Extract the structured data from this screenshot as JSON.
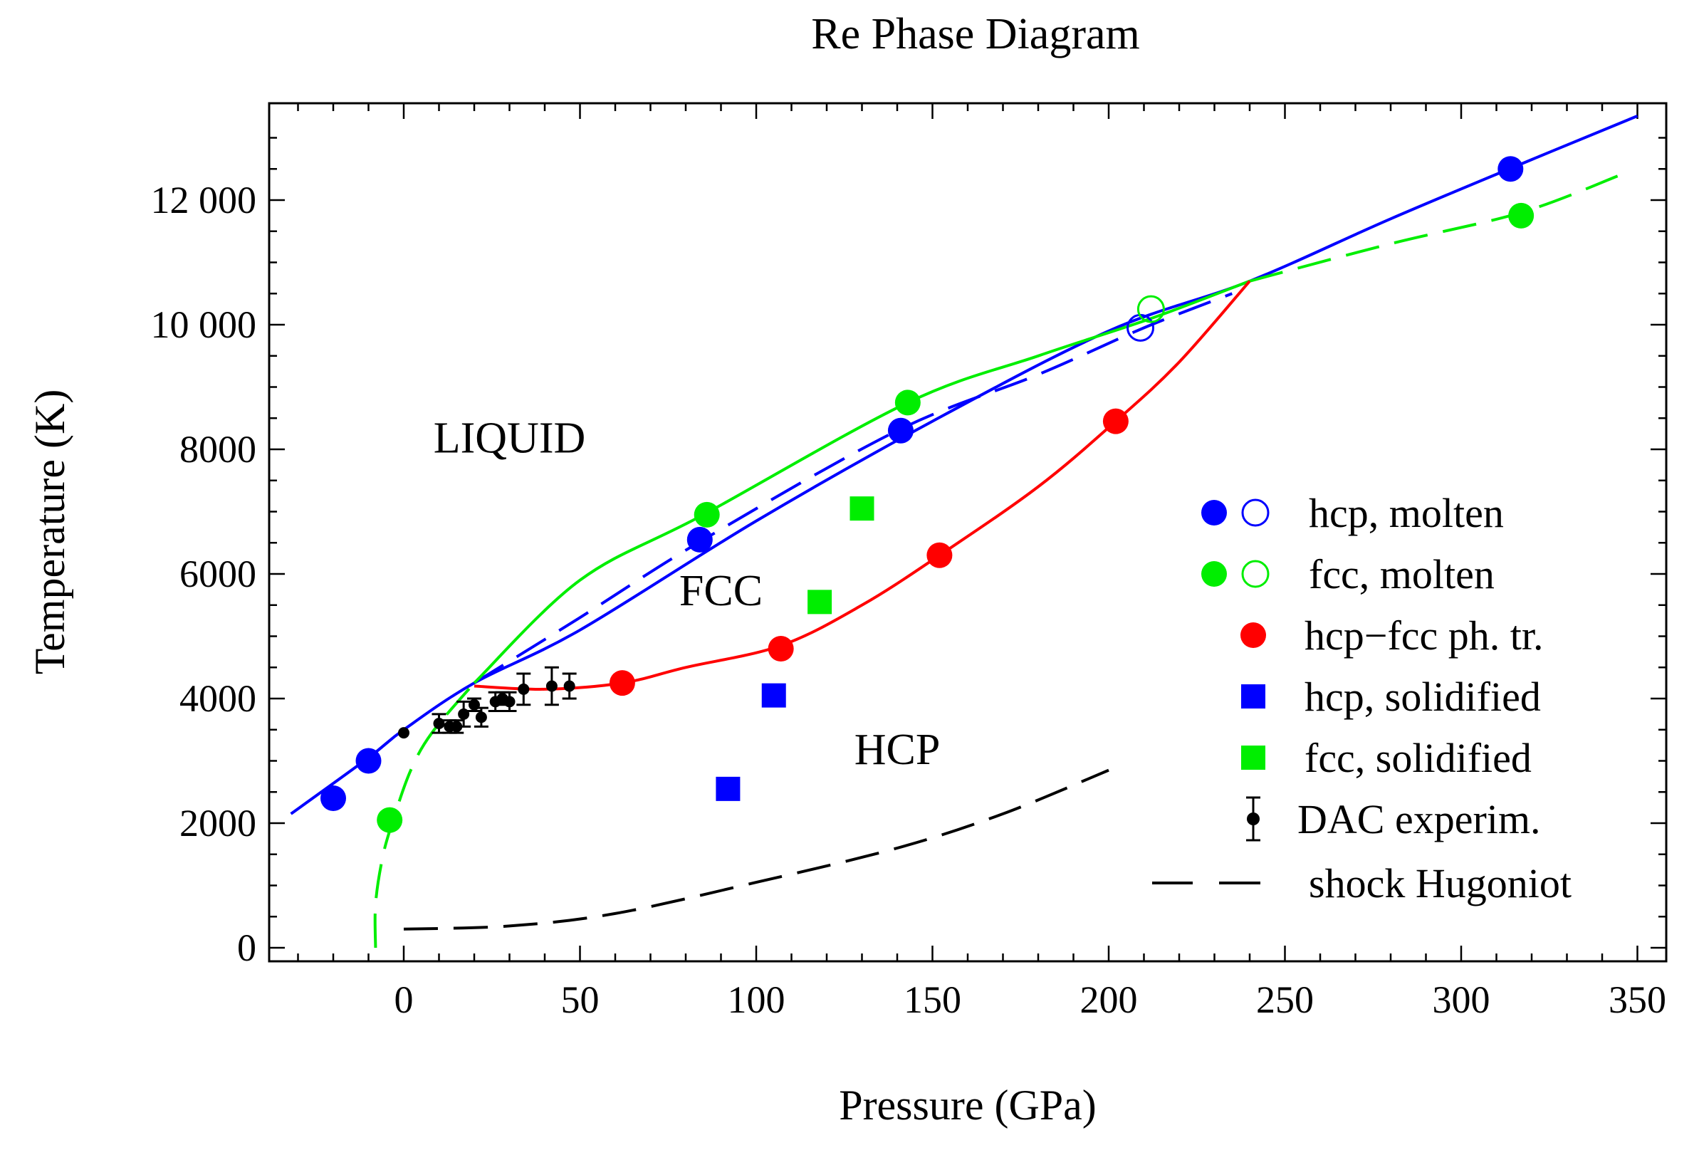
{
  "chart_data": {
    "type": "scatter",
    "title": "Re Phase Diagram",
    "xlabel": "Pressure (GPa)",
    "ylabel": "Temperature (K)",
    "xlim": [
      -40,
      350
    ],
    "ylim": [
      -250,
      13800
    ],
    "x_ticks": [
      0,
      50,
      100,
      150,
      200,
      250,
      300,
      350
    ],
    "x_tick_labels": [
      "0",
      "50",
      "100",
      "150",
      "200",
      "250",
      "300",
      "350"
    ],
    "y_ticks": [
      0,
      2000,
      4000,
      6000,
      8000,
      10000,
      12000
    ],
    "y_tick_labels": [
      "0",
      "2000",
      "4000",
      "6000",
      "8000",
      "10 000",
      "12 000"
    ],
    "grid": false,
    "legend_position": "right",
    "colors": {
      "blue": "#0000ff",
      "green": "#00ee00",
      "red": "#ff0000",
      "black": "#000000"
    },
    "region_labels": [
      {
        "text": "LIQUID",
        "x": 30,
        "y": 7950
      },
      {
        "text": "FCC",
        "x": 90,
        "y": 5500
      },
      {
        "text": "HCP",
        "x": 140,
        "y": 2950
      }
    ],
    "lines": [
      {
        "id": "hcp-melt",
        "color": "#0000ff",
        "style": "solid",
        "points": [
          [
            -32,
            2150
          ],
          [
            -10,
            3050
          ],
          [
            0,
            3500
          ],
          [
            20,
            4250
          ],
          [
            50,
            5100
          ],
          [
            100,
            6850
          ],
          [
            150,
            8450
          ],
          [
            200,
            9900
          ],
          [
            240,
            10700
          ],
          [
            280,
            11700
          ],
          [
            320,
            12650
          ],
          [
            350,
            13350
          ]
        ]
      },
      {
        "id": "hcp-melt-metastable",
        "color": "#0000ff",
        "style": "dashed",
        "points": [
          [
            20,
            4250
          ],
          [
            50,
            5300
          ],
          [
            85,
            6550
          ],
          [
            140,
            8300
          ],
          [
            180,
            9200
          ],
          [
            210,
            9950
          ],
          [
            235,
            10500
          ]
        ]
      },
      {
        "id": "fcc-melt",
        "color": "#00ee00",
        "style": "solid",
        "points": [
          [
            20,
            4250
          ],
          [
            50,
            5900
          ],
          [
            85,
            6950
          ],
          [
            143,
            8750
          ],
          [
            180,
            9500
          ],
          [
            212,
            10100
          ],
          [
            240,
            10700
          ]
        ]
      },
      {
        "id": "fcc-melt-extension",
        "color": "#00ee00",
        "style": "dashed",
        "points": [
          [
            240,
            10700
          ],
          [
            280,
            11300
          ],
          [
            317,
            11800
          ],
          [
            345,
            12400
          ]
        ]
      },
      {
        "id": "fcc-melt-low-pressure",
        "color": "#00ee00",
        "style": "dashed",
        "points": [
          [
            -8,
            0
          ],
          [
            -8,
            700
          ],
          [
            -6,
            1450
          ],
          [
            -3,
            2050
          ],
          [
            2,
            2850
          ],
          [
            8,
            3450
          ],
          [
            20,
            4250
          ]
        ]
      },
      {
        "id": "hcp-fcc-transition",
        "color": "#ff0000",
        "style": "solid",
        "points": [
          [
            20,
            4200
          ],
          [
            40,
            4150
          ],
          [
            62,
            4250
          ],
          [
            80,
            4500
          ],
          [
            107,
            4850
          ],
          [
            130,
            5500
          ],
          [
            152,
            6300
          ],
          [
            180,
            7400
          ],
          [
            202,
            8450
          ],
          [
            220,
            9400
          ],
          [
            240,
            10700
          ]
        ]
      },
      {
        "id": "shock-hugoniot",
        "color": "#000000",
        "style": "dashed",
        "points": [
          [
            0,
            300
          ],
          [
            30,
            350
          ],
          [
            60,
            550
          ],
          [
            100,
            1050
          ],
          [
            140,
            1600
          ],
          [
            170,
            2150
          ],
          [
            200,
            2850
          ]
        ]
      }
    ],
    "series": [
      {
        "name": "hcp, molten",
        "marker": "circle",
        "color": "#0000ff",
        "filled": true,
        "points": [
          [
            -20,
            2400
          ],
          [
            -10,
            3000
          ],
          [
            84,
            6550
          ],
          [
            141,
            8300
          ],
          [
            314,
            12500
          ]
        ]
      },
      {
        "name": "hcp, molten",
        "marker": "circle",
        "color": "#0000ff",
        "filled": false,
        "points": [
          [
            209,
            9950
          ]
        ]
      },
      {
        "name": "fcc, molten",
        "marker": "circle",
        "color": "#00ee00",
        "filled": true,
        "points": [
          [
            -4,
            2050
          ],
          [
            86,
            6950
          ],
          [
            143,
            8750
          ],
          [
            317,
            11750
          ]
        ]
      },
      {
        "name": "fcc, molten",
        "marker": "circle",
        "color": "#00ee00",
        "filled": false,
        "points": [
          [
            212,
            10250
          ]
        ]
      },
      {
        "name": "hcp−fcc ph. tr.",
        "marker": "circle",
        "color": "#ff0000",
        "filled": true,
        "points": [
          [
            62,
            4250
          ],
          [
            107,
            4800
          ],
          [
            152,
            6300
          ],
          [
            202,
            8450
          ]
        ]
      },
      {
        "name": "hcp, solidified",
        "marker": "square",
        "color": "#0000ff",
        "filled": true,
        "points": [
          [
            92,
            2550
          ],
          [
            105,
            4050
          ]
        ]
      },
      {
        "name": "fcc, solidified",
        "marker": "square",
        "color": "#00ee00",
        "filled": true,
        "points": [
          [
            118,
            5550
          ],
          [
            130,
            7050
          ]
        ]
      },
      {
        "name": "DAC experim.",
        "marker": "errorbar",
        "color": "#000000",
        "filled": true,
        "points": [
          [
            0,
            3450,
            0
          ],
          [
            10,
            3600,
            150
          ],
          [
            13,
            3550,
            100
          ],
          [
            15,
            3550,
            100
          ],
          [
            17,
            3750,
            200
          ],
          [
            20,
            3900,
            100
          ],
          [
            22,
            3700,
            150
          ],
          [
            26,
            3950,
            150
          ],
          [
            28,
            4000,
            100
          ],
          [
            30,
            3950,
            150
          ],
          [
            34,
            4150,
            250
          ],
          [
            42,
            4200,
            300
          ],
          [
            47,
            4200,
            200
          ]
        ]
      },
      {
        "name": "shock Hugoniot",
        "marker": "dashed-line",
        "color": "#000000",
        "filled": false,
        "points": []
      }
    ]
  }
}
